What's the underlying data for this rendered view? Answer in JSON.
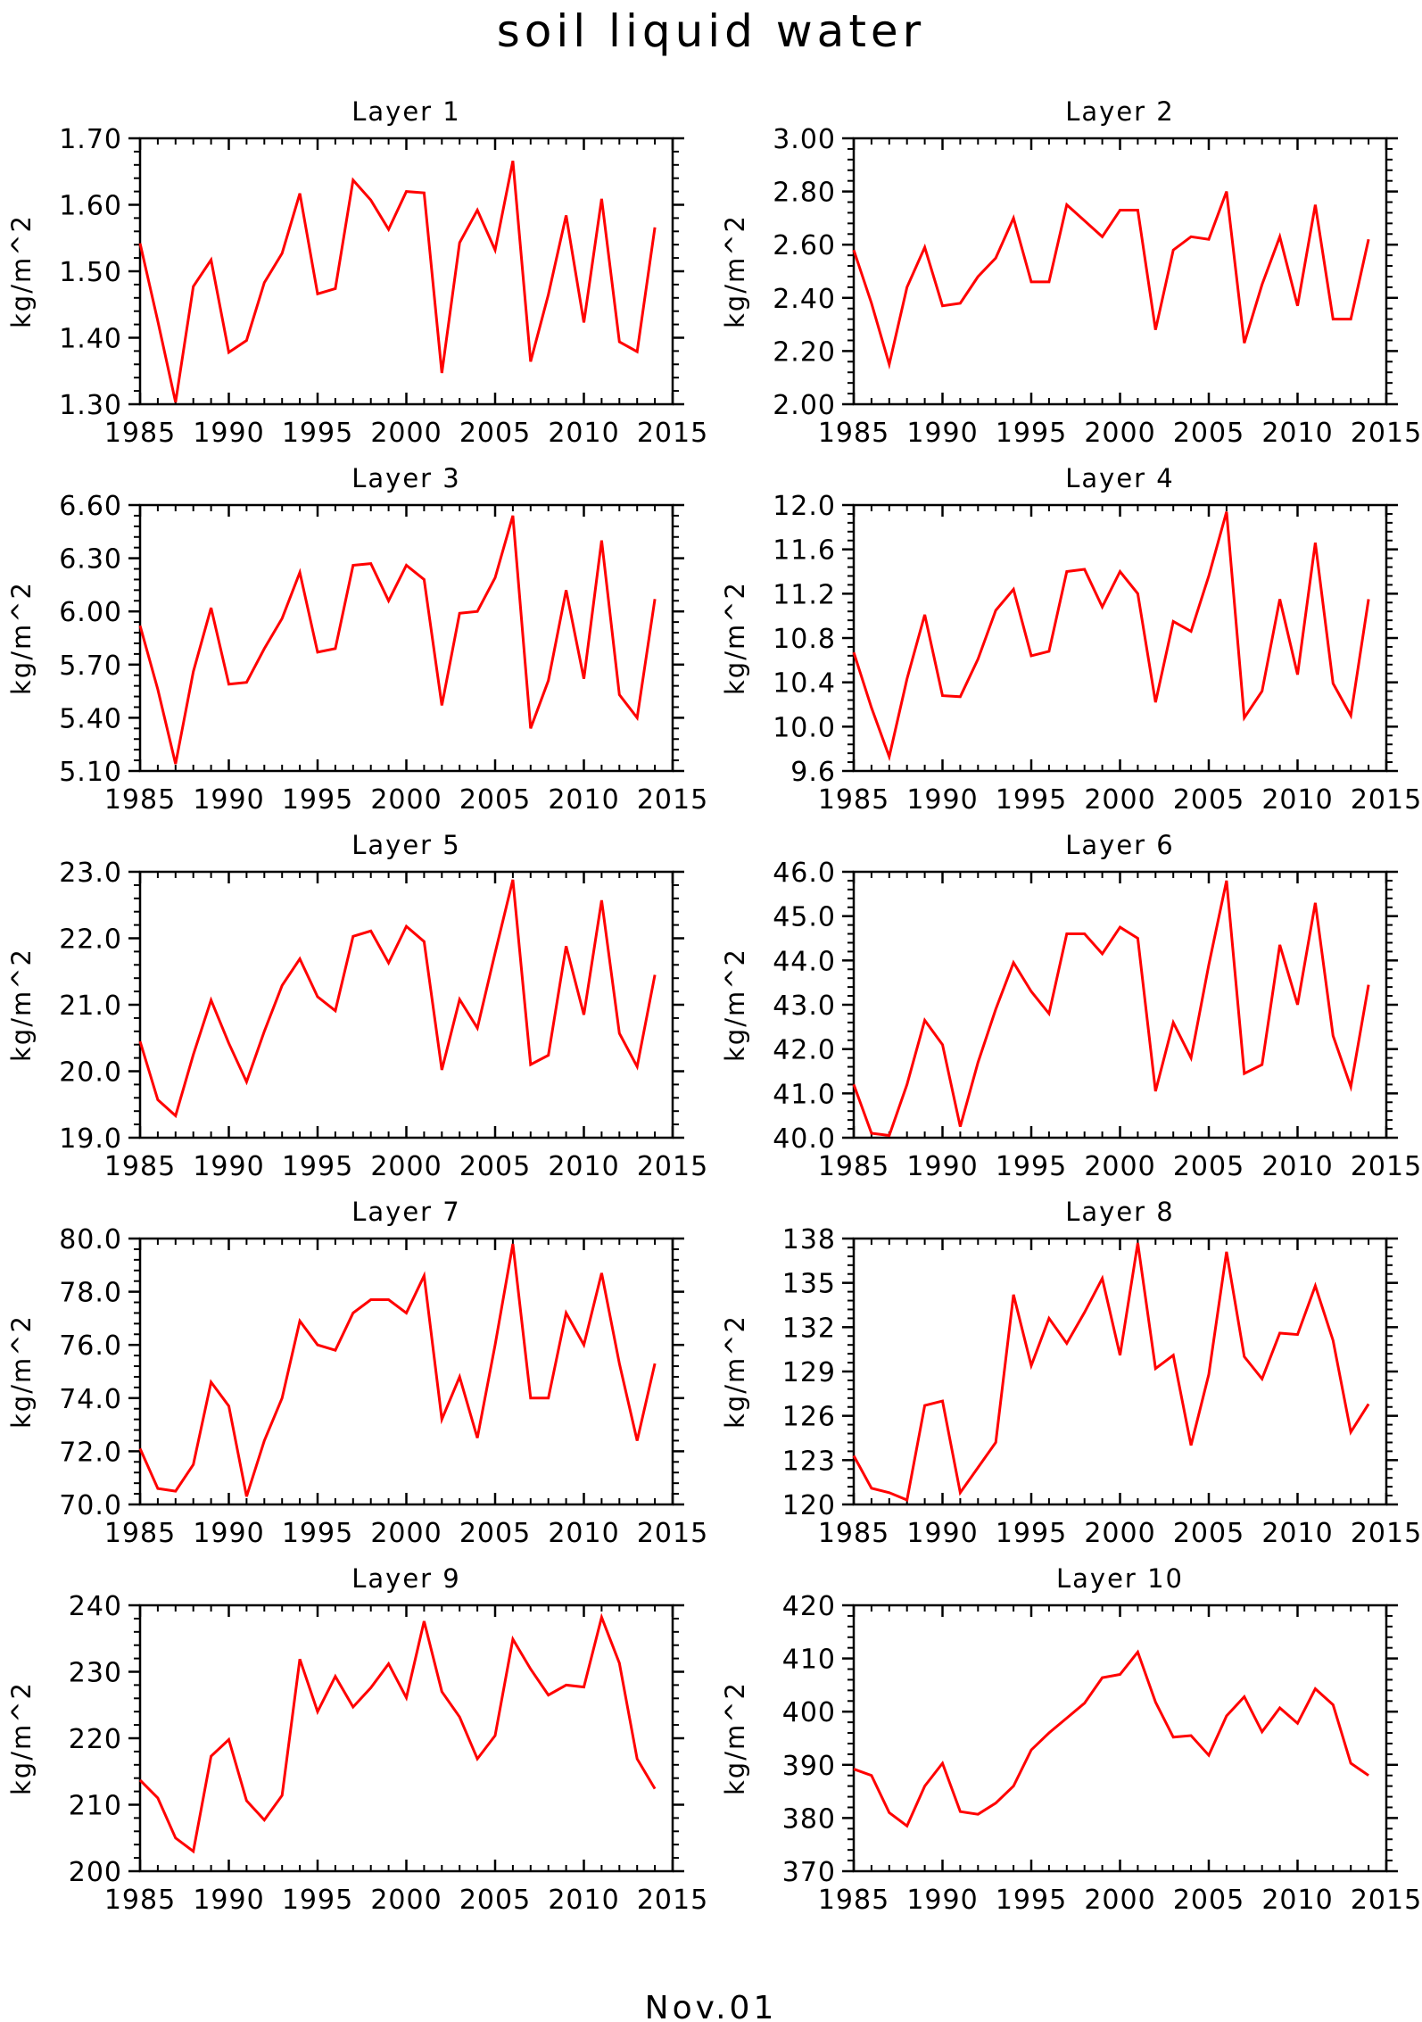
{
  "figure": {
    "title": "soil liquid water",
    "footer": "Nov.01",
    "line_color": "#ff0000"
  },
  "chart_data": [
    {
      "type": "line",
      "title": "Layer 1",
      "ylabel": "kg/m^2",
      "ylim": [
        1.3,
        1.7
      ],
      "yticks": [
        "1.30",
        "1.40",
        "1.50",
        "1.60",
        "1.70"
      ],
      "xlim": [
        1985,
        2015
      ],
      "xticks": [
        "1985",
        "1990",
        "1995",
        "2000",
        "2005",
        "2010",
        "2015"
      ],
      "x": [
        1985,
        1986,
        1987,
        1988,
        1989,
        1990,
        1991,
        1992,
        1993,
        1994,
        1995,
        1996,
        1997,
        1998,
        1999,
        2000,
        2001,
        2002,
        2003,
        2004,
        2005,
        2006,
        2007,
        2008,
        2009,
        2010,
        2011,
        2012,
        2013,
        2014
      ],
      "y": [
        1.542,
        1.425,
        1.303,
        1.477,
        1.517,
        1.378,
        1.396,
        1.483,
        1.527,
        1.617,
        1.466,
        1.474,
        1.637,
        1.607,
        1.563,
        1.62,
        1.618,
        1.347,
        1.543,
        1.592,
        1.532,
        1.666,
        1.364,
        1.465,
        1.584,
        1.423,
        1.609,
        1.394,
        1.379,
        1.566
      ]
    },
    {
      "type": "line",
      "title": "Layer 2",
      "ylabel": "kg/m^2",
      "ylim": [
        2.0,
        3.0
      ],
      "yticks": [
        "2.00",
        "2.20",
        "2.40",
        "2.60",
        "2.80",
        "3.00"
      ],
      "xlim": [
        1985,
        2015
      ],
      "xticks": [
        "1985",
        "1990",
        "1995",
        "2000",
        "2005",
        "2010",
        "2015"
      ],
      "x": [
        1985,
        1986,
        1987,
        1988,
        1989,
        1990,
        1991,
        1992,
        1993,
        1994,
        1995,
        1996,
        1997,
        1998,
        1999,
        2000,
        2001,
        2002,
        2003,
        2004,
        2005,
        2006,
        2007,
        2008,
        2009,
        2010,
        2011,
        2012,
        2013,
        2014
      ],
      "y": [
        2.58,
        2.38,
        2.15,
        2.44,
        2.59,
        2.37,
        2.38,
        2.48,
        2.55,
        2.7,
        2.46,
        2.46,
        2.75,
        2.69,
        2.63,
        2.73,
        2.73,
        2.28,
        2.58,
        2.63,
        2.62,
        2.8,
        2.23,
        2.45,
        2.63,
        2.37,
        2.75,
        2.32,
        2.32,
        2.62
      ]
    },
    {
      "type": "line",
      "title": "Layer 3",
      "ylabel": "kg/m^2",
      "ylim": [
        5.1,
        6.6
      ],
      "yticks": [
        "5.10",
        "5.40",
        "5.70",
        "6.00",
        "6.30",
        "6.60"
      ],
      "xlim": [
        1985,
        2015
      ],
      "xticks": [
        "1985",
        "1990",
        "1995",
        "2000",
        "2005",
        "2010",
        "2015"
      ],
      "x": [
        1985,
        1986,
        1987,
        1988,
        1989,
        1990,
        1991,
        1992,
        1993,
        1994,
        1995,
        1996,
        1997,
        1998,
        1999,
        2000,
        2001,
        2002,
        2003,
        2004,
        2005,
        2006,
        2007,
        2008,
        2009,
        2010,
        2011,
        2012,
        2013,
        2014
      ],
      "y": [
        5.92,
        5.56,
        5.14,
        5.66,
        6.02,
        5.59,
        5.6,
        5.79,
        5.96,
        6.22,
        5.77,
        5.79,
        6.26,
        6.27,
        6.06,
        6.26,
        6.18,
        5.47,
        5.99,
        6.0,
        6.19,
        6.54,
        5.34,
        5.61,
        6.12,
        5.62,
        6.4,
        5.53,
        5.4,
        6.07
      ]
    },
    {
      "type": "line",
      "title": "Layer 4",
      "ylabel": "kg/m^2",
      "ylim": [
        9.6,
        12.0
      ],
      "yticks": [
        "9.6",
        "10.0",
        "10.4",
        "10.8",
        "11.2",
        "11.6",
        "12.0"
      ],
      "xlim": [
        1985,
        2015
      ],
      "xticks": [
        "1985",
        "1990",
        "1995",
        "2000",
        "2005",
        "2010",
        "2015"
      ],
      "x": [
        1985,
        1986,
        1987,
        1988,
        1989,
        1990,
        1991,
        1992,
        1993,
        1994,
        1995,
        1996,
        1997,
        1998,
        1999,
        2000,
        2001,
        2002,
        2003,
        2004,
        2005,
        2006,
        2007,
        2008,
        2009,
        2010,
        2011,
        2012,
        2013,
        2014
      ],
      "y": [
        10.67,
        10.17,
        9.73,
        10.43,
        11.01,
        10.28,
        10.27,
        10.61,
        11.05,
        11.24,
        10.64,
        10.68,
        11.4,
        11.42,
        11.08,
        11.4,
        11.2,
        10.22,
        10.95,
        10.86,
        11.36,
        11.94,
        10.08,
        10.32,
        11.15,
        10.47,
        11.66,
        10.39,
        10.1,
        11.15
      ]
    },
    {
      "type": "line",
      "title": "Layer 5",
      "ylabel": "kg/m^2",
      "ylim": [
        19.0,
        23.0
      ],
      "yticks": [
        "19.0",
        "20.0",
        "21.0",
        "22.0",
        "23.0"
      ],
      "xlim": [
        1985,
        2015
      ],
      "xticks": [
        "1985",
        "1990",
        "1995",
        "2000",
        "2005",
        "2010",
        "2015"
      ],
      "x": [
        1985,
        1986,
        1987,
        1988,
        1989,
        1990,
        1991,
        1992,
        1993,
        1994,
        1995,
        1996,
        1997,
        1998,
        1999,
        2000,
        2001,
        2002,
        2003,
        2004,
        2005,
        2006,
        2007,
        2008,
        2009,
        2010,
        2011,
        2012,
        2013,
        2014
      ],
      "y": [
        20.45,
        19.57,
        19.33,
        20.25,
        21.07,
        20.42,
        19.84,
        20.6,
        21.29,
        21.69,
        21.12,
        20.91,
        22.03,
        22.11,
        21.63,
        22.18,
        21.95,
        20.02,
        21.08,
        20.65,
        21.78,
        22.88,
        20.1,
        20.24,
        21.88,
        20.85,
        22.57,
        20.57,
        20.07,
        21.45
      ]
    },
    {
      "type": "line",
      "title": "Layer 6",
      "ylabel": "kg/m^2",
      "ylim": [
        40.0,
        46.0
      ],
      "yticks": [
        "40.0",
        "41.0",
        "42.0",
        "43.0",
        "44.0",
        "45.0",
        "46.0"
      ],
      "xlim": [
        1985,
        2015
      ],
      "xticks": [
        "1985",
        "1990",
        "1995",
        "2000",
        "2005",
        "2010",
        "2015"
      ],
      "x": [
        1985,
        1986,
        1987,
        1988,
        1989,
        1990,
        1991,
        1992,
        1993,
        1994,
        1995,
        1996,
        1997,
        1998,
        1999,
        2000,
        2001,
        2002,
        2003,
        2004,
        2005,
        2006,
        2007,
        2008,
        2009,
        2010,
        2011,
        2012,
        2013,
        2014
      ],
      "y": [
        41.2,
        40.1,
        40.05,
        41.2,
        42.65,
        42.1,
        40.25,
        41.7,
        42.9,
        43.95,
        43.3,
        42.8,
        44.6,
        44.6,
        44.15,
        44.75,
        44.5,
        41.05,
        42.6,
        41.8,
        43.9,
        45.8,
        41.45,
        41.65,
        44.35,
        43.0,
        45.3,
        42.3,
        41.15,
        43.45
      ]
    },
    {
      "type": "line",
      "title": "Layer 7",
      "ylabel": "kg/m^2",
      "ylim": [
        70.0,
        80.0
      ],
      "yticks": [
        "70.0",
        "72.0",
        "74.0",
        "76.0",
        "78.0",
        "80.0"
      ],
      "xlim": [
        1985,
        2015
      ],
      "xticks": [
        "1985",
        "1990",
        "1995",
        "2000",
        "2005",
        "2010",
        "2015"
      ],
      "x": [
        1985,
        1986,
        1987,
        1988,
        1989,
        1990,
        1991,
        1992,
        1993,
        1994,
        1995,
        1996,
        1997,
        1998,
        1999,
        2000,
        2001,
        2002,
        2003,
        2004,
        2005,
        2006,
        2007,
        2008,
        2009,
        2010,
        2011,
        2012,
        2013,
        2014
      ],
      "y": [
        72.1,
        70.6,
        70.5,
        71.5,
        74.6,
        73.7,
        70.3,
        72.4,
        74.0,
        76.9,
        76.0,
        75.8,
        77.2,
        77.7,
        77.7,
        77.2,
        78.6,
        73.2,
        74.8,
        72.5,
        76.0,
        79.8,
        74.0,
        74.0,
        77.2,
        76.0,
        78.7,
        75.3,
        72.4,
        75.3
      ]
    },
    {
      "type": "line",
      "title": "Layer 8",
      "ylabel": "kg/m^2",
      "ylim": [
        120,
        138
      ],
      "yticks": [
        "120",
        "123",
        "126",
        "129",
        "132",
        "135",
        "138"
      ],
      "xlim": [
        1985,
        2015
      ],
      "xticks": [
        "1985",
        "1990",
        "1995",
        "2000",
        "2005",
        "2010",
        "2015"
      ],
      "x": [
        1985,
        1986,
        1987,
        1988,
        1989,
        1990,
        1991,
        1992,
        1993,
        1994,
        1995,
        1996,
        1997,
        1998,
        1999,
        2000,
        2001,
        2002,
        2003,
        2004,
        2005,
        2006,
        2007,
        2008,
        2009,
        2010,
        2011,
        2012,
        2013,
        2014
      ],
      "y": [
        123.3,
        121.1,
        120.8,
        120.3,
        126.7,
        127.0,
        120.8,
        122.5,
        124.2,
        134.2,
        129.4,
        132.6,
        130.9,
        133.0,
        135.3,
        130.1,
        137.7,
        129.2,
        130.1,
        124.0,
        128.8,
        137.1,
        130.0,
        128.5,
        131.6,
        131.5,
        134.8,
        131.1,
        124.9,
        126.8
      ]
    },
    {
      "type": "line",
      "title": "Layer 9",
      "ylabel": "kg/m^2",
      "ylim": [
        200,
        240
      ],
      "yticks": [
        "200",
        "210",
        "220",
        "230",
        "240"
      ],
      "xlim": [
        1985,
        2015
      ],
      "xticks": [
        "1985",
        "1990",
        "1995",
        "2000",
        "2005",
        "2010",
        "2015"
      ],
      "x": [
        1985,
        1986,
        1987,
        1988,
        1989,
        1990,
        1991,
        1992,
        1993,
        1994,
        1995,
        1996,
        1997,
        1998,
        1999,
        2000,
        2001,
        2002,
        2003,
        2004,
        2005,
        2006,
        2007,
        2008,
        2009,
        2010,
        2011,
        2012,
        2013,
        2014
      ],
      "y": [
        213.7,
        211.0,
        205.0,
        203.0,
        217.3,
        219.8,
        210.6,
        207.7,
        211.4,
        231.9,
        224.0,
        229.3,
        224.7,
        227.6,
        231.2,
        226.1,
        237.6,
        227.0,
        223.2,
        216.9,
        220.4,
        234.9,
        230.4,
        226.5,
        228.0,
        227.7,
        238.2,
        231.3,
        216.9,
        212.4
      ]
    },
    {
      "type": "line",
      "title": "Layer 10",
      "ylabel": "kg/m^2",
      "ylim": [
        370,
        420
      ],
      "yticks": [
        "370",
        "380",
        "390",
        "400",
        "410",
        "420"
      ],
      "xlim": [
        1985,
        2015
      ],
      "xticks": [
        "1985",
        "1990",
        "1995",
        "2000",
        "2005",
        "2010",
        "2015"
      ],
      "x": [
        1985,
        1986,
        1987,
        1988,
        1989,
        1990,
        1991,
        1992,
        1993,
        1994,
        1995,
        1996,
        1997,
        1998,
        1999,
        2000,
        2001,
        2002,
        2003,
        2004,
        2005,
        2006,
        2007,
        2008,
        2009,
        2010,
        2011,
        2012,
        2013,
        2014
      ],
      "y": [
        389.2,
        388.0,
        381.0,
        378.5,
        386.0,
        390.3,
        381.2,
        380.7,
        382.8,
        386.0,
        392.8,
        396.0,
        398.8,
        401.6,
        406.4,
        407.0,
        411.2,
        401.8,
        395.2,
        395.5,
        391.8,
        399.2,
        402.8,
        396.2,
        400.7,
        397.8,
        404.3,
        401.3,
        390.3,
        388.0
      ]
    }
  ]
}
